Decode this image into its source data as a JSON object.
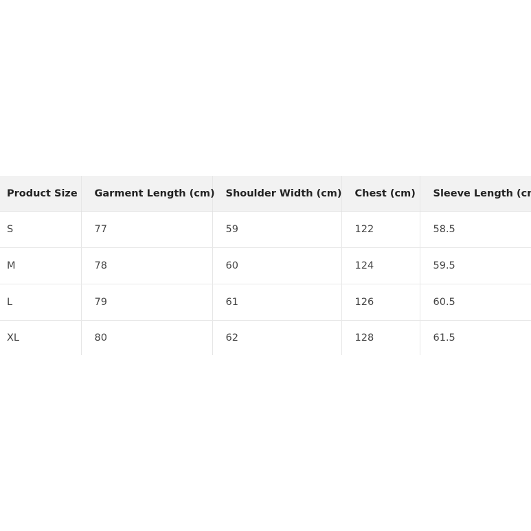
{
  "table": {
    "headers": [
      "Product Size",
      "Garment Length (cm)",
      "Shoulder Width (cm)",
      "Chest (cm)",
      "Sleeve Length (cm)"
    ],
    "rows": [
      [
        "S",
        "77",
        "59",
        "122",
        "58.5"
      ],
      [
        "M",
        "78",
        "60",
        "124",
        "59.5"
      ],
      [
        "L",
        "79",
        "61",
        "126",
        "60.5"
      ],
      [
        "XL",
        "80",
        "62",
        "128",
        "61.5"
      ]
    ]
  }
}
